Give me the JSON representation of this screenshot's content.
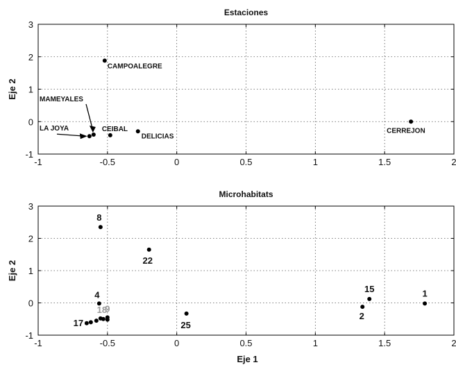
{
  "chart_data": [
    {
      "type": "scatter",
      "title": "Estaciones",
      "xlabel": "",
      "ylabel": "Eje 2",
      "xlim": [
        -1,
        2
      ],
      "ylim": [
        -1,
        3
      ],
      "xticks": [
        "-1",
        "-0.5",
        "0",
        "0.5",
        "1",
        "1.5",
        "2"
      ],
      "yticks": [
        "-1",
        "0",
        "1",
        "2",
        "3"
      ],
      "grid": true,
      "points": [
        {
          "label": "CAMPOALEGRE",
          "x": -0.52,
          "y": 1.88
        },
        {
          "label": "MAMEYALES",
          "x": -0.6,
          "y": -0.4
        },
        {
          "label": "LA JOYA",
          "x": -0.63,
          "y": -0.45
        },
        {
          "label": "CEIBAL",
          "x": -0.48,
          "y": -0.42
        },
        {
          "label": "DELICIAS",
          "x": -0.28,
          "y": -0.3
        },
        {
          "label": "CERREJON",
          "x": 1.69,
          "y": 0.0
        }
      ]
    },
    {
      "type": "scatter",
      "title": "Microhabitats",
      "xlabel": "Eje 1",
      "ylabel": "Eje 2",
      "xlim": [
        -1,
        2
      ],
      "ylim": [
        -1,
        3
      ],
      "xticks": [
        "-1",
        "-0.5",
        "0",
        "0.5",
        "1",
        "1.5",
        "2"
      ],
      "yticks": [
        "-1",
        "0",
        "1",
        "2",
        "3"
      ],
      "grid": true,
      "points": [
        {
          "label": "8",
          "x": -0.55,
          "y": 2.35
        },
        {
          "label": "22",
          "x": -0.2,
          "y": 1.65
        },
        {
          "label": "4",
          "x": -0.56,
          "y": -0.02
        },
        {
          "label": "18",
          "x": -0.55,
          "y": -0.48
        },
        {
          "label": "9",
          "x": -0.5,
          "y": -0.45
        },
        {
          "label": "17",
          "x": -0.65,
          "y": -0.63
        },
        {
          "label": "",
          "x": -0.62,
          "y": -0.6
        },
        {
          "label": "",
          "x": -0.58,
          "y": -0.55
        },
        {
          "label": "",
          "x": -0.53,
          "y": -0.5
        },
        {
          "label": "",
          "x": -0.5,
          "y": -0.52
        },
        {
          "label": "25",
          "x": 0.07,
          "y": -0.33
        },
        {
          "label": "2",
          "x": 1.34,
          "y": -0.12
        },
        {
          "label": "15",
          "x": 1.39,
          "y": 0.12
        },
        {
          "label": "1",
          "x": 1.79,
          "y": -0.02
        }
      ]
    }
  ]
}
